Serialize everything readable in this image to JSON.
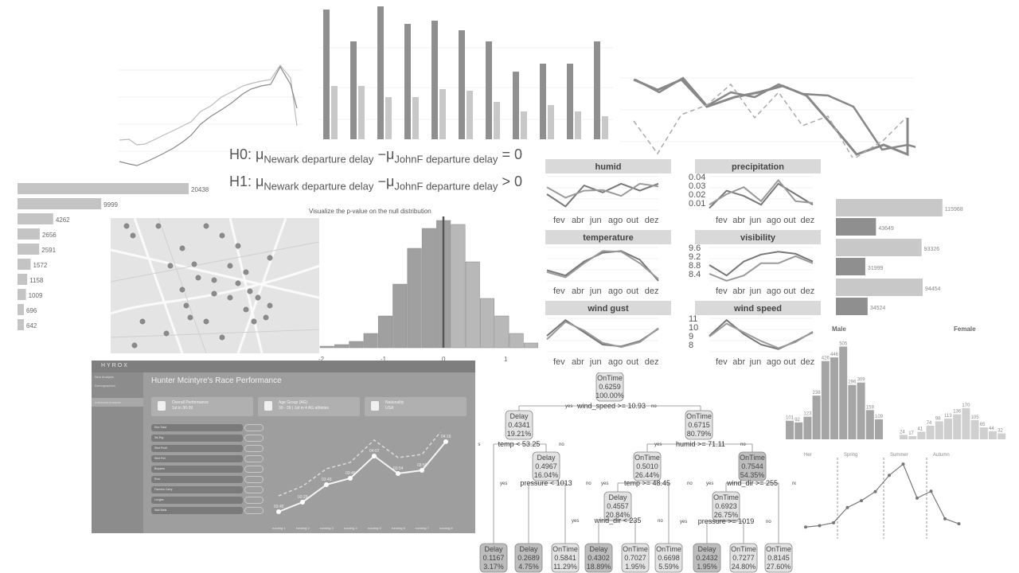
{
  "hypotheses": {
    "h0_prefix": "H0: μ",
    "h0_sub1": "Newark departure delay",
    "h0_mid": "−μ",
    "h0_sub2": "JohnF departure delay",
    "h0_suffix": "= 0",
    "h1_prefix": "H1: μ",
    "h1_sub1": "Newark departure delay",
    "h1_mid": "−μ",
    "h1_sub2": "JohnF departure delay",
    "h1_suffix": "> 0"
  },
  "histogram": {
    "title": "Visualize the p-value on the null distribution",
    "tick_labels": [
      "-2",
      "-1",
      "0",
      "1"
    ]
  },
  "chart_data": [
    {
      "type": "bar",
      "orientation": "horizontal",
      "values": [
        20438,
        9999,
        4262,
        2656,
        2591,
        1572,
        1158,
        1009,
        696,
        642
      ],
      "value_labels": [
        "20438",
        "9999",
        "4262",
        "2656",
        "2591",
        "1572",
        "1158",
        "1009",
        "696",
        "642"
      ]
    },
    {
      "type": "bar",
      "orientation": "horizontal",
      "groups": [
        {
          "values": [
            115968,
            43649
          ],
          "labels": [
            "115968",
            "43649"
          ]
        },
        {
          "values": [
            93326,
            31999
          ],
          "labels": [
            "93326",
            "31999"
          ]
        },
        {
          "values": [
            94454,
            34524
          ],
          "labels": [
            "94454",
            "34524"
          ]
        }
      ]
    },
    {
      "type": "line",
      "facets": [
        {
          "title": "humid",
          "y_ticks": []
        },
        {
          "title": "precipitation",
          "y_ticks": [
            "0.04",
            "0.03",
            "0.02",
            "0.01"
          ]
        },
        {
          "title": "temperature",
          "y_ticks": []
        },
        {
          "title": "visibility",
          "y_ticks": [
            "9.6",
            "9.2",
            "8.8",
            "8.4"
          ]
        },
        {
          "title": "wind gust",
          "y_ticks": []
        },
        {
          "title": "wind speed",
          "y_ticks": [
            "11",
            "10",
            "9",
            "8"
          ]
        }
      ],
      "x_ticks": [
        "fev",
        "abr",
        "jun",
        "ago",
        "out",
        "dez"
      ],
      "series": [
        {
          "values_humid": [
            0.5,
            0.1,
            0.7,
            0.55,
            0.75,
            0.6,
            0.7
          ],
          "values_humid_b": [
            0.65,
            0.4,
            0.55,
            0.6,
            0.5,
            0.75,
            0.7
          ]
        }
      ]
    },
    {
      "type": "bar",
      "facets": [
        {
          "title": "Male",
          "values": [
            101,
            92,
            123,
            238,
            426,
            446,
            505,
            296,
            309,
            159,
            109
          ],
          "labels": [
            "101",
            "92",
            "123",
            "238",
            "426",
            "446",
            "505",
            "296",
            "309",
            "159",
            "109"
          ]
        },
        {
          "title": "Female",
          "values": [
            24,
            17,
            41,
            74,
            98,
            113,
            136,
            170,
            105,
            65,
            44,
            32
          ],
          "labels": [
            "24",
            "17",
            "41",
            "74",
            "98",
            "113",
            "136",
            "170",
            "105",
            "65",
            "44",
            "32"
          ]
        }
      ]
    },
    {
      "type": "line",
      "seasons": [
        "Her",
        "Spring",
        "Summer",
        "Autumn"
      ],
      "values": [
        108,
        112,
        120,
        162,
        181,
        206,
        251,
        282,
        188,
        207,
        131,
        117
      ]
    }
  ],
  "tree": {
    "root": {
      "label": "OnTime",
      "value": "0.6259",
      "pct": "100.00%"
    },
    "root_split": "wind_speed >= 10.93",
    "left": {
      "label": "Delay",
      "value": "0.4341",
      "pct": "19.21%"
    },
    "left_split": "temp < 53.25",
    "left_right": {
      "label": "Delay",
      "value": "0.4967",
      "pct": "16.04%"
    },
    "lr_split": "pressure < 1013",
    "right": {
      "label": "OnTime",
      "value": "0.6715",
      "pct": "80.79%"
    },
    "right_split": "humid >= 71.11",
    "rl": {
      "label": "OnTime",
      "value": "0.5010",
      "pct": "26.44%"
    },
    "rl_split": "temp >= 48.45",
    "rll": {
      "label": "Delay",
      "value": "0.4557",
      "pct": "20.84%"
    },
    "rll_split": "wind_dir < 235",
    "rr": {
      "label": "OnTime",
      "value": "0.7544",
      "pct": "54.35%"
    },
    "rr_split": "wind_dir >= 255",
    "rrl": {
      "label": "OnTime",
      "value": "0.6923",
      "pct": "26.75%"
    },
    "rrl_split": "pressure >= 1019",
    "yes": "yes",
    "no": "no",
    "leaves": [
      {
        "label": "Delay",
        "value": "0.1167",
        "pct": "3.17%"
      },
      {
        "label": "Delay",
        "value": "0.2689",
        "pct": "4.75%"
      },
      {
        "label": "OnTime",
        "value": "0.5841",
        "pct": "11.29%"
      },
      {
        "label": "Delay",
        "value": "0.4302",
        "pct": "18.89%"
      },
      {
        "label": "OnTime",
        "value": "0.7027",
        "pct": "1.95%"
      },
      {
        "label": "OnTime",
        "value": "0.6698",
        "pct": "5.59%"
      },
      {
        "label": "Delay",
        "value": "0.2432",
        "pct": "1.95%"
      },
      {
        "label": "OnTime",
        "value": "0.7277",
        "pct": "24.80%"
      },
      {
        "label": "OnTime",
        "value": "0.8145",
        "pct": "27.60%"
      }
    ]
  },
  "hyrox": {
    "brand": "HYROX",
    "title": "Hunter Mcintyre's Race Performance",
    "card1_title": "Overall Performance",
    "card1_sub": "1st in 30-39",
    "card2_title": "Age Group (AG)",
    "card2_sub": "30 - 39 | 1st in 4 AG athletes",
    "card3_title": "Nationality",
    "card3_sub": "USA",
    "nav": [
      "New Analysis",
      "Demographics",
      "Individual Analysis"
    ],
    "rows": [
      "Run Total",
      "Ski Erg",
      "Sled Push",
      "Sled Pull",
      "Burpees",
      "Row",
      "Farmers Carry",
      "Lunges",
      "Wall Balls"
    ],
    "point_labels": [
      "03:45",
      "03:29",
      "03:43",
      "03:46",
      "04:07",
      "03:54",
      "03:58",
      "04:16"
    ],
    "x_labels": [
      "running 1",
      "running 2",
      "running 3",
      "running 4",
      "running 5",
      "running 6",
      "running 7",
      "running 8"
    ]
  }
}
